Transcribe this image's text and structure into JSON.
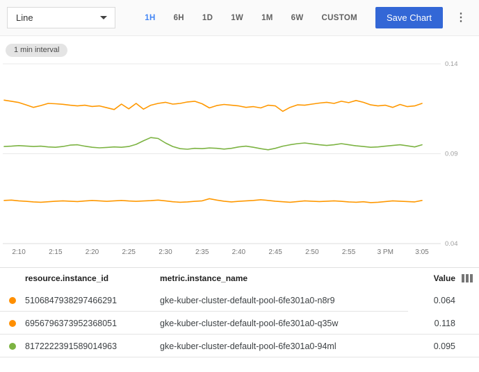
{
  "toolbar": {
    "chart_type_select": {
      "value": "Line"
    },
    "time_ranges": [
      {
        "label": "1H",
        "active": true
      },
      {
        "label": "6H",
        "active": false
      },
      {
        "label": "1D",
        "active": false
      },
      {
        "label": "1W",
        "active": false
      },
      {
        "label": "1M",
        "active": false
      },
      {
        "label": "6W",
        "active": false
      },
      {
        "label": "CUSTOM",
        "active": false
      }
    ],
    "save_button_label": "Save Chart",
    "more_menu_icon": "kebab-vertical"
  },
  "chart": {
    "interval_badge": "1 min interval",
    "accent_color": "#4285f4",
    "save_button_color": "#3367d6"
  },
  "chart_data": {
    "type": "line",
    "title": "",
    "xlabel": "",
    "ylabel": "",
    "y_axis_side": "right",
    "grid": true,
    "legend_position": "table-below",
    "ylim": [
      0.04,
      0.14
    ],
    "y_ticks": [
      0.14,
      0.09,
      0.04
    ],
    "y_tick_labels": [
      "0.14",
      "0.09",
      "0.04"
    ],
    "x_tick_labels": [
      "2:10",
      "2:15",
      "2:20",
      "2:25",
      "2:30",
      "2:35",
      "2:40",
      "2:45",
      "2:50",
      "2:55",
      "3 PM",
      "3:05"
    ],
    "x_tick_minutes": [
      2,
      7,
      12,
      17,
      22,
      27,
      32,
      37,
      42,
      47,
      52,
      57
    ],
    "x_minutes_total": 57,
    "series": [
      {
        "name": "gke-kuber-cluster-default-pool-6fe301a0-n8r9",
        "instance_id": "5106847938297466291",
        "color": "#ff9800",
        "current_value": 0.064,
        "values": [
          0.064,
          0.0642,
          0.0638,
          0.0635,
          0.0632,
          0.063,
          0.0633,
          0.0636,
          0.0638,
          0.0636,
          0.0634,
          0.0637,
          0.064,
          0.0638,
          0.0635,
          0.0638,
          0.064,
          0.0637,
          0.0635,
          0.0637,
          0.0639,
          0.0642,
          0.0638,
          0.0633,
          0.063,
          0.0632,
          0.0635,
          0.0638,
          0.065,
          0.0642,
          0.0636,
          0.0632,
          0.0635,
          0.0638,
          0.064,
          0.0644,
          0.064,
          0.0636,
          0.0633,
          0.063,
          0.0634,
          0.0638,
          0.0636,
          0.0634,
          0.0636,
          0.0638,
          0.0635,
          0.0632,
          0.063,
          0.0633,
          0.0628,
          0.063,
          0.0634,
          0.0638,
          0.0636,
          0.0634,
          0.0632,
          0.064
        ]
      },
      {
        "name": "gke-kuber-cluster-default-pool-6fe301a0-q35w",
        "instance_id": "6956796373952368051",
        "color": "#ff9800",
        "current_value": 0.118,
        "values": [
          0.1198,
          0.1192,
          0.1185,
          0.1172,
          0.1158,
          0.1168,
          0.118,
          0.1178,
          0.1175,
          0.117,
          0.1166,
          0.117,
          0.1163,
          0.1166,
          0.1156,
          0.1146,
          0.1176,
          0.115,
          0.118,
          0.1148,
          0.117,
          0.118,
          0.1186,
          0.1176,
          0.118,
          0.1188,
          0.1192,
          0.1178,
          0.1155,
          0.1168,
          0.1174,
          0.117,
          0.1166,
          0.1158,
          0.1162,
          0.1155,
          0.117,
          0.1166,
          0.1136,
          0.1158,
          0.1172,
          0.117,
          0.1176,
          0.1182,
          0.1186,
          0.118,
          0.1192,
          0.1184,
          0.1196,
          0.1186,
          0.1172,
          0.1166,
          0.117,
          0.1158,
          0.1174,
          0.1162,
          0.1166,
          0.118
        ]
      },
      {
        "name": "gke-kuber-cluster-default-pool-6fe301a0-94ml",
        "instance_id": "8172222391589014963",
        "color": "#7cb342",
        "current_value": 0.095,
        "values": [
          0.094,
          0.0942,
          0.0945,
          0.0943,
          0.094,
          0.0942,
          0.0938,
          0.0936,
          0.094,
          0.0948,
          0.095,
          0.0942,
          0.0936,
          0.0933,
          0.0935,
          0.0938,
          0.0936,
          0.094,
          0.0952,
          0.0972,
          0.099,
          0.0985,
          0.096,
          0.094,
          0.0928,
          0.0925,
          0.093,
          0.0928,
          0.0932,
          0.093,
          0.0926,
          0.093,
          0.0938,
          0.0942,
          0.0936,
          0.0928,
          0.0922,
          0.093,
          0.0942,
          0.095,
          0.0956,
          0.096,
          0.0955,
          0.095,
          0.0946,
          0.095,
          0.0956,
          0.095,
          0.0944,
          0.094,
          0.0936,
          0.0938,
          0.0942,
          0.0946,
          0.095,
          0.0944,
          0.0938,
          0.095
        ]
      }
    ]
  },
  "table": {
    "columns": {
      "instance_id": "resource.instance_id",
      "instance_name": "metric.instance_name",
      "value": "Value"
    },
    "column_selector_icon": "view-column",
    "rows": [
      {
        "color": "#ff8f00",
        "instance_id": "5106847938297466291",
        "instance_name": "gke-kuber-cluster-default-pool-6fe301a0-n8r9",
        "value": "0.064"
      },
      {
        "color": "#ff8f00",
        "instance_id": "6956796373952368051",
        "instance_name": "gke-kuber-cluster-default-pool-6fe301a0-q35w",
        "value": "0.118"
      },
      {
        "color": "#7cb342",
        "instance_id": "8172222391589014963",
        "instance_name": "gke-kuber-cluster-default-pool-6fe301a0-94ml",
        "value": "0.095"
      }
    ]
  }
}
